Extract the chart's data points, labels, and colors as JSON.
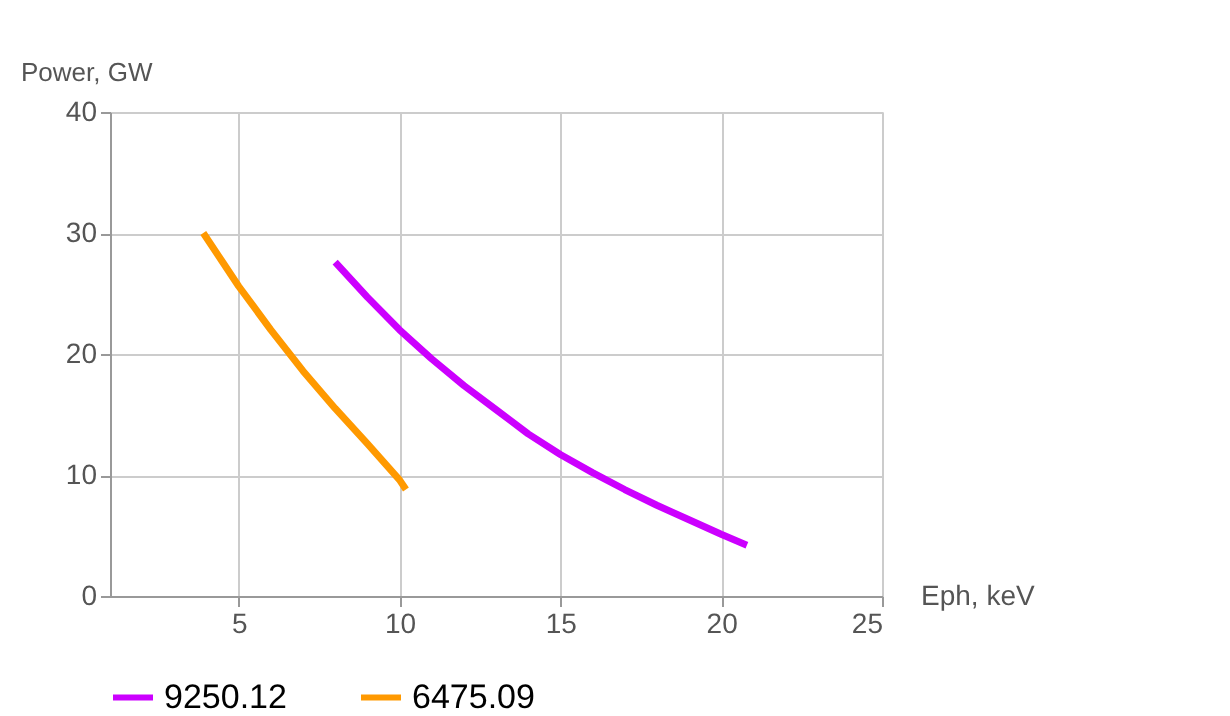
{
  "chart_data": {
    "type": "line",
    "xlabel": "Eph, keV",
    "ylabel": "Power, GW",
    "xlim": [
      1,
      25
    ],
    "xticks": [
      5,
      10,
      15,
      20,
      25
    ],
    "ylim": [
      0,
      40
    ],
    "yticks": [
      0,
      10,
      20,
      30,
      40
    ],
    "grid": true,
    "legend": "bottom",
    "marker": "none",
    "line_style": "solid",
    "series": [
      {
        "name": "9250.12",
        "color": "#cc00ff",
        "x": [
          8,
          9,
          10,
          11,
          12,
          13,
          14,
          15,
          16,
          17,
          18,
          19,
          20,
          20.8
        ],
        "values": [
          27.6,
          24.7,
          22.0,
          19.6,
          17.4,
          15.4,
          13.4,
          11.7,
          10.2,
          8.8,
          7.5,
          6.3,
          5.1,
          4.2
        ]
      },
      {
        "name": "6475.09",
        "color": "#ff9900",
        "x": [
          3.9,
          4.5,
          5,
          6,
          7,
          8,
          9,
          10,
          10.2
        ],
        "values": [
          30,
          27.6,
          25.6,
          22,
          18.6,
          15.5,
          12.6,
          9.6,
          8.8
        ]
      }
    ]
  }
}
